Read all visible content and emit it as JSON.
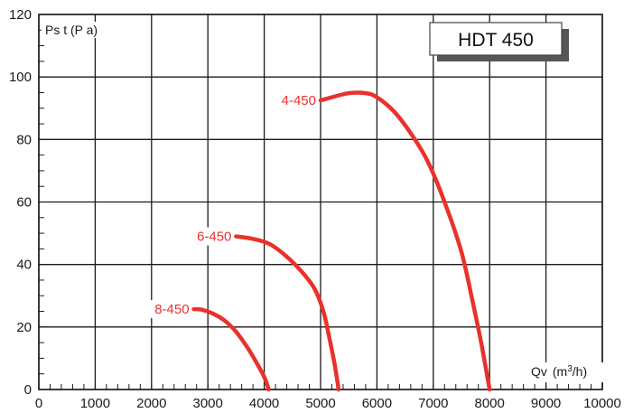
{
  "chart_data": {
    "type": "line",
    "title": "HDT 450",
    "ylabel": "Ps t (P a)",
    "xlabel_prefix": "Qv",
    "xlabel_unit": "(m3/h)",
    "xlim": [
      0,
      10000
    ],
    "ylim": [
      0,
      120
    ],
    "grid": true,
    "x_ticks": [
      0,
      1000,
      2000,
      3000,
      4000,
      5000,
      6000,
      7000,
      8000,
      9000,
      10000
    ],
    "x_tick_labels": [
      "0",
      "1000",
      "2000",
      "3000",
      "4000",
      "5000",
      "6000",
      "7000",
      "8000",
      "9000",
      "10000"
    ],
    "y_ticks": [
      0,
      20,
      40,
      60,
      80,
      100,
      120
    ],
    "y_tick_labels": [
      "0",
      "20",
      "40",
      "60",
      "80",
      "100",
      "120"
    ],
    "line_color": "#e8322b",
    "series": [
      {
        "name": "4-450",
        "points": [
          [
            5000,
            92.5
          ],
          [
            5200,
            93.5
          ],
          [
            5500,
            94.8
          ],
          [
            5800,
            94.8
          ],
          [
            6000,
            93.5
          ],
          [
            6300,
            89
          ],
          [
            6600,
            82
          ],
          [
            6900,
            73
          ],
          [
            7200,
            60
          ],
          [
            7500,
            44
          ],
          [
            7700,
            28
          ],
          [
            7850,
            15
          ],
          [
            8000,
            0
          ]
        ]
      },
      {
        "name": "6-450",
        "points": [
          [
            3500,
            49
          ],
          [
            3800,
            48.2
          ],
          [
            4100,
            46.5
          ],
          [
            4400,
            42.5
          ],
          [
            4700,
            37
          ],
          [
            4900,
            32
          ],
          [
            5050,
            25
          ],
          [
            5150,
            17
          ],
          [
            5250,
            8
          ],
          [
            5320,
            0
          ]
        ]
      },
      {
        "name": "8-450",
        "points": [
          [
            2750,
            25.7
          ],
          [
            2900,
            25.5
          ],
          [
            3100,
            24.2
          ],
          [
            3300,
            22
          ],
          [
            3500,
            18.5
          ],
          [
            3700,
            13.5
          ],
          [
            3850,
            9
          ],
          [
            4000,
            4
          ],
          [
            4080,
            0
          ]
        ]
      }
    ]
  }
}
